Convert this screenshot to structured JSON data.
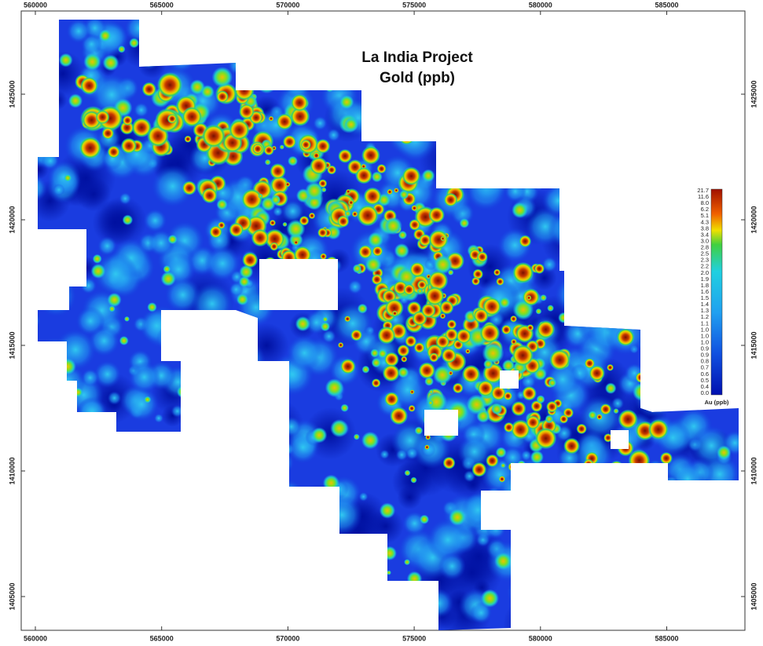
{
  "title": [
    "La India Project",
    "Gold (ppb)"
  ],
  "x_axis": {
    "ticks": [
      560000,
      565000,
      570000,
      575000,
      580000,
      585000
    ]
  },
  "y_axis": {
    "ticks": [
      1425000,
      1420000,
      1415000,
      1410000,
      1405000
    ]
  },
  "legend": {
    "title": "Au (ppb)",
    "labels": [
      "21.7",
      "11.6",
      "8.0",
      "6.2",
      "5.1",
      "4.3",
      "3.8",
      "3.4",
      "3.0",
      "2.8",
      "2.5",
      "2.3",
      "2.2",
      "2.0",
      "1.9",
      "1.8",
      "1.6",
      "1.5",
      "1.4",
      "1.3",
      "1.2",
      "1.1",
      "1.0",
      "1.0",
      "1.0",
      "0.9",
      "0.9",
      "0.8",
      "0.7",
      "0.6",
      "0.5",
      "0.4",
      "0.0"
    ]
  }
}
